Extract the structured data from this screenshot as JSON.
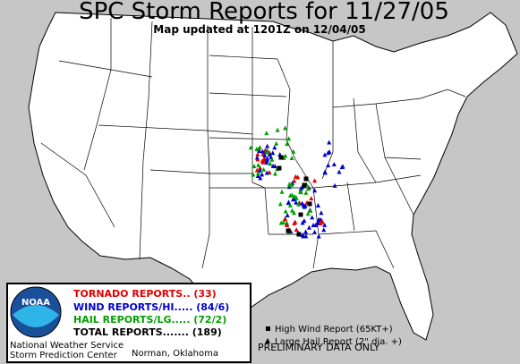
{
  "header": {
    "title": "SPC Storm Reports for 11/27/05",
    "subtitle": "Map updated at 1201Z on 12/04/05"
  },
  "legend": {
    "logo": "NOAA",
    "tornado": "TORNADO REPORTS.. (33)",
    "wind": "WIND REPORTS/HI..... (84/6)",
    "hail": "HAIL REPORTS/LG..... (72/2)",
    "total": "TOTAL REPORTS....... (189)",
    "office": "National Weather Service",
    "center": "Storm Prediction Center",
    "city": "Norman, Oklahoma"
  },
  "key": {
    "high_wind": "High Wind Report (65KT+)",
    "large_hail": "Large Hail Report (2\" dia. +)"
  },
  "notice": "PRELIMINARY DATA ONLY"
}
